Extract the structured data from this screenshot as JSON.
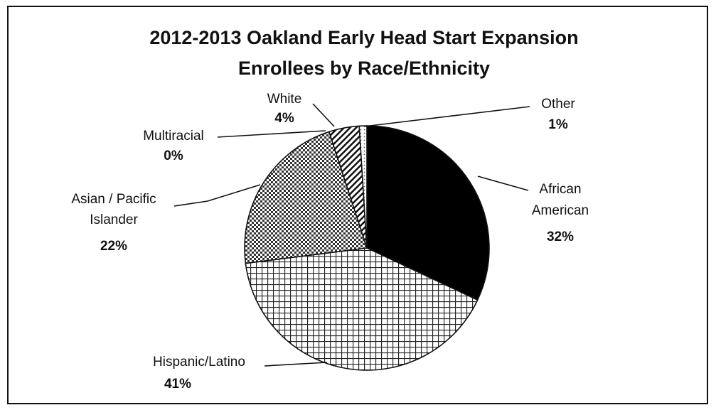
{
  "chart_data": {
    "type": "pie",
    "title_lines": [
      "2012-2013 Oakland Early Head Start Expansion",
      "Enrollees by Race/Ethnicity"
    ],
    "slices": [
      {
        "key": "african",
        "label_lines": [
          "African",
          "American"
        ],
        "pct_label": "32%",
        "value": 32,
        "fill": "solid-black"
      },
      {
        "key": "hispanic",
        "label_lines": [
          "Hispanic/Latino"
        ],
        "pct_label": "41%",
        "value": 41,
        "fill": "grid"
      },
      {
        "key": "asian",
        "label_lines": [
          "Asian / Pacific",
          "Islander"
        ],
        "pct_label": "22%",
        "value": 22,
        "fill": "dots"
      },
      {
        "key": "multiracial",
        "label_lines": [
          "Multiracial"
        ],
        "pct_label": "0%",
        "value": 0,
        "fill": "none"
      },
      {
        "key": "white",
        "label_lines": [
          "White"
        ],
        "pct_label": "4%",
        "value": 4,
        "fill": "diagonal"
      },
      {
        "key": "other",
        "label_lines": [
          "Other"
        ],
        "pct_label": "1%",
        "value": 1,
        "fill": "light-dots"
      }
    ],
    "colors": {
      "ink": "#111111",
      "background": "#ffffff"
    }
  }
}
